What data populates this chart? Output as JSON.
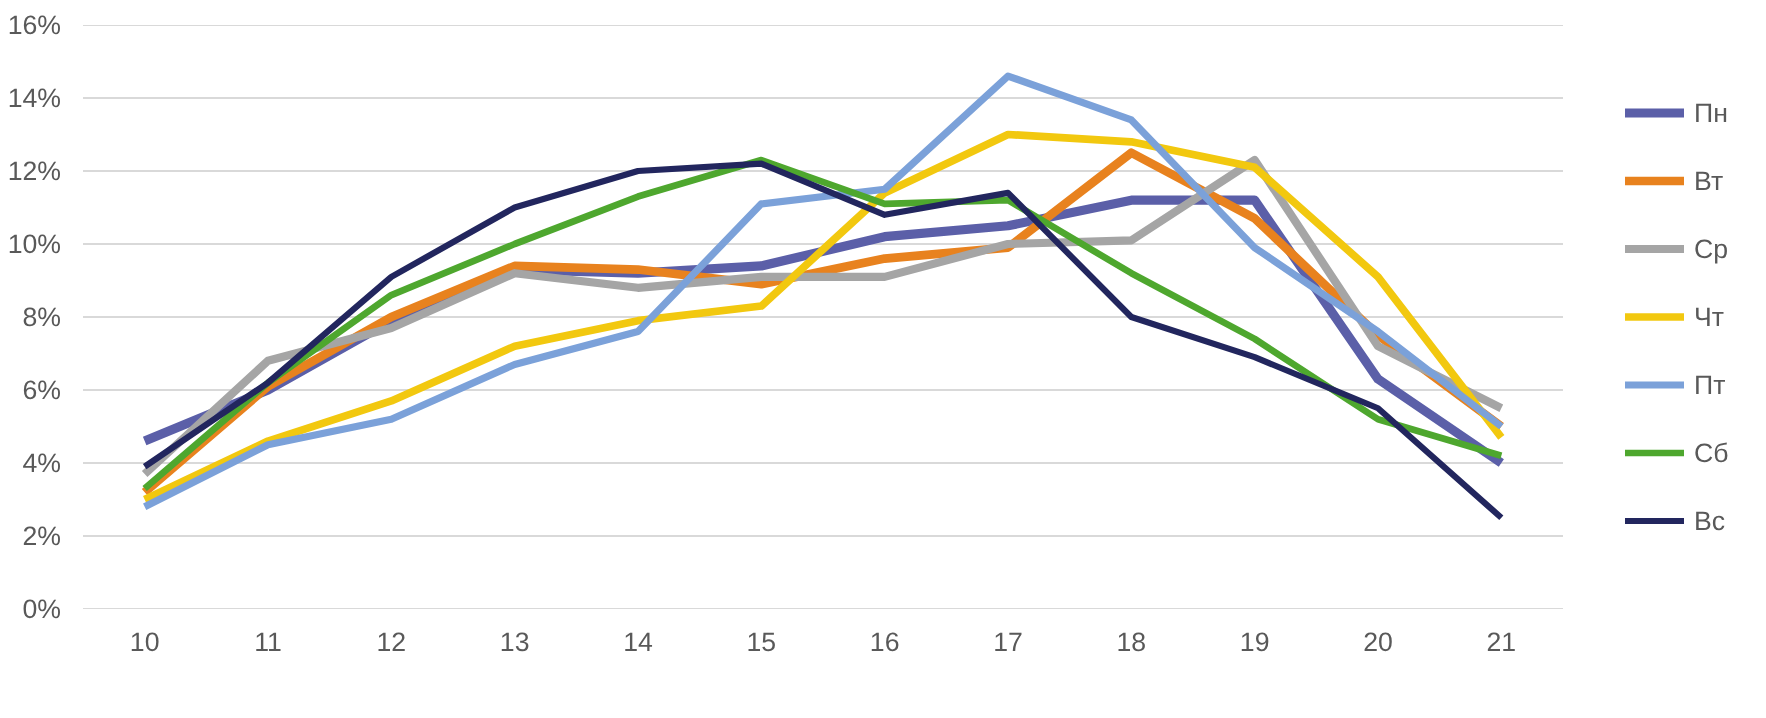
{
  "chart_data": {
    "type": "line",
    "categories": [
      "10",
      "11",
      "12",
      "13",
      "14",
      "15",
      "16",
      "17",
      "18",
      "19",
      "20",
      "21"
    ],
    "series": [
      {
        "name": "Пн",
        "color": "#5b5fa8",
        "values": [
          4.6,
          6.0,
          7.9,
          9.3,
          9.2,
          9.4,
          10.2,
          10.5,
          11.2,
          11.2,
          6.3,
          4.0
        ]
      },
      {
        "name": "Вт",
        "color": "#e8821e",
        "values": [
          3.2,
          6.1,
          8.0,
          9.4,
          9.3,
          8.9,
          9.6,
          9.9,
          12.5,
          10.7,
          7.5,
          5.0
        ]
      },
      {
        "name": "Ср",
        "color": "#a5a5a5",
        "values": [
          3.7,
          6.8,
          7.7,
          9.2,
          8.8,
          9.1,
          9.1,
          10.0,
          10.1,
          12.3,
          7.2,
          5.5
        ]
      },
      {
        "name": "Чт",
        "color": "#f2c80f",
        "values": [
          3.0,
          4.6,
          5.7,
          7.2,
          7.9,
          8.3,
          11.4,
          13.0,
          12.8,
          12.1,
          9.1,
          4.7
        ]
      },
      {
        "name": "Пт",
        "color": "#7ba1d9",
        "values": [
          2.8,
          4.5,
          5.2,
          6.7,
          7.6,
          11.1,
          11.5,
          14.6,
          13.4,
          9.9,
          7.6,
          5.0
        ]
      },
      {
        "name": "Сб",
        "color": "#4ea72e",
        "values": [
          3.3,
          6.2,
          8.6,
          10.0,
          11.3,
          12.3,
          11.1,
          11.2,
          9.2,
          7.4,
          5.2,
          4.2
        ]
      },
      {
        "name": "Вс",
        "color": "#22265e",
        "values": [
          3.9,
          6.2,
          9.1,
          11.0,
          12.0,
          12.2,
          10.8,
          11.4,
          8.0,
          6.9,
          5.5,
          2.5
        ]
      }
    ],
    "ylim": [
      0,
      16
    ],
    "yticks": [
      {
        "value": 0,
        "label": "0%"
      },
      {
        "value": 2,
        "label": "2%"
      },
      {
        "value": 4,
        "label": "4%"
      },
      {
        "value": 6,
        "label": "6%"
      },
      {
        "value": 8,
        "label": "8%"
      },
      {
        "value": 10,
        "label": "10%"
      },
      {
        "value": 12,
        "label": "12%"
      },
      {
        "value": 14,
        "label": "14%"
      },
      {
        "value": 16,
        "label": "16%"
      }
    ],
    "grid": "y",
    "legend": "right",
    "marker": "none",
    "line_style": "solid"
  }
}
